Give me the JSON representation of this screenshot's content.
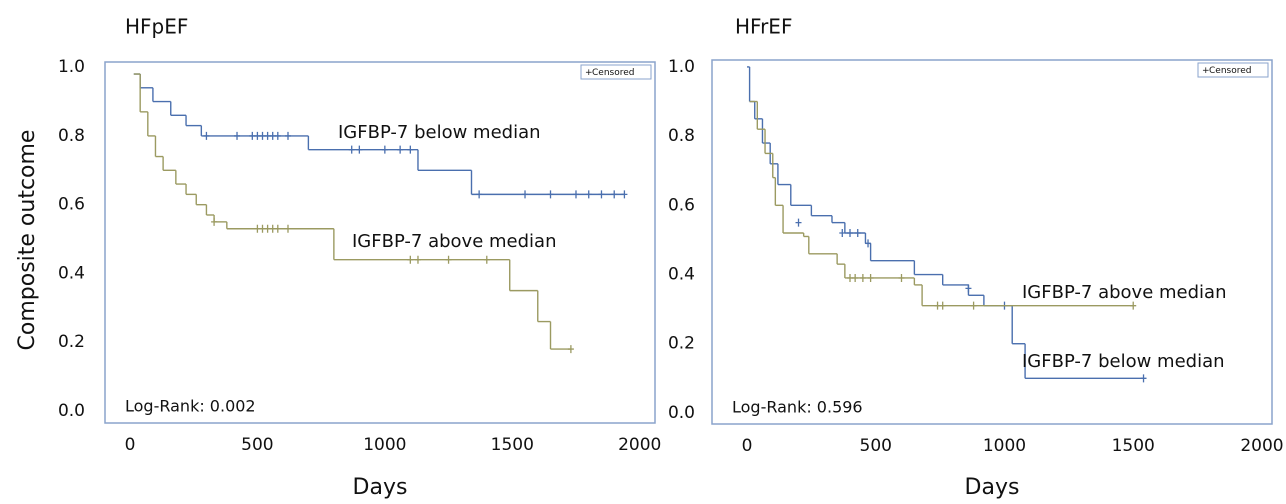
{
  "chart_data": [
    {
      "type": "step",
      "title": "HFpEF",
      "xlabel": "Days",
      "ylabel": "Composite outcome",
      "annotation": "Log-Rank: 0.002",
      "legend_label": "Censored",
      "xlim": [
        -98,
        2060
      ],
      "ylim": [
        -0.035,
        1.015
      ],
      "xticks": [
        0,
        500,
        1000,
        1500,
        2000
      ],
      "yticks": [
        {
          "value": 0,
          "label": "0.0"
        },
        0.2,
        0.4,
        0.6,
        0.8,
        {
          "value": 1,
          "label": "1.0"
        }
      ],
      "series": [
        {
          "name": "IGFBP-7 below median",
          "color": "#4a6fae",
          "x": [
            15,
            40,
            90,
            160,
            220,
            280,
            700,
            1130,
            1340,
            1940
          ],
          "values": [
            0.98,
            0.94,
            0.9,
            0.86,
            0.83,
            0.8,
            0.76,
            0.7,
            0.63,
            0.63
          ],
          "censored_x": [
            300,
            420,
            480,
            500,
            520,
            540,
            560,
            580,
            620,
            870,
            900,
            1000,
            1060,
            1100,
            1370,
            1550,
            1650,
            1750,
            1800,
            1850,
            1900,
            1940
          ],
          "censored_values": [
            0.8,
            0.8,
            0.8,
            0.8,
            0.8,
            0.8,
            0.8,
            0.8,
            0.8,
            0.76,
            0.76,
            0.76,
            0.76,
            0.76,
            0.63,
            0.63,
            0.63,
            0.63,
            0.63,
            0.63,
            0.63,
            0.63
          ]
        },
        {
          "name": "IGFBP-7 above median",
          "color": "#9b9a61",
          "x": [
            15,
            40,
            70,
            100,
            130,
            180,
            220,
            260,
            300,
            330,
            380,
            800,
            1490,
            1600,
            1650,
            1730
          ],
          "values": [
            0.98,
            0.87,
            0.8,
            0.74,
            0.7,
            0.66,
            0.63,
            0.6,
            0.57,
            0.55,
            0.53,
            0.44,
            0.35,
            0.26,
            0.18,
            0.18
          ],
          "censored_x": [
            330,
            500,
            520,
            540,
            560,
            580,
            620,
            1100,
            1130,
            1250,
            1400,
            1730
          ],
          "censored_values": [
            0.55,
            0.53,
            0.53,
            0.53,
            0.53,
            0.53,
            0.53,
            0.44,
            0.44,
            0.44,
            0.44,
            0.18
          ]
        }
      ]
    },
    {
      "type": "step",
      "title": "HFrEF",
      "xlabel": "Days",
      "annotation": "Log-Rank: 0.596",
      "legend_label": "Censored",
      "xlim": [
        -136,
        2039
      ],
      "ylim": [
        -0.032,
        1.02
      ],
      "xticks": [
        0,
        500,
        1000,
        1500,
        2000
      ],
      "yticks": [
        {
          "value": 0,
          "label": "0.0"
        },
        0.2,
        0.4,
        0.6,
        0.8,
        {
          "value": 1,
          "label": "1.0"
        }
      ],
      "series": [
        {
          "name": "IGFBP-7 below median",
          "color": "#4a6fae",
          "x": [
            0,
            10,
            30,
            60,
            90,
            120,
            170,
            250,
            330,
            380,
            460,
            480,
            650,
            760,
            860,
            920,
            1030,
            1080,
            1540
          ],
          "values": [
            1.0,
            0.9,
            0.85,
            0.78,
            0.72,
            0.66,
            0.6,
            0.57,
            0.55,
            0.52,
            0.49,
            0.44,
            0.4,
            0.37,
            0.34,
            0.31,
            0.2,
            0.1,
            0.1
          ],
          "censored_x": [
            200,
            370,
            400,
            430,
            470,
            860,
            1000,
            1540
          ],
          "censored_values": [
            0.55,
            0.52,
            0.52,
            0.52,
            0.49,
            0.36,
            0.31,
            0.1
          ]
        },
        {
          "name": "IGFBP-7 above median",
          "color": "#9b9a61",
          "x": [
            10,
            40,
            70,
            100,
            110,
            140,
            220,
            240,
            350,
            380,
            650,
            680,
            1500
          ],
          "values": [
            0.9,
            0.82,
            0.75,
            0.68,
            0.6,
            0.52,
            0.51,
            0.46,
            0.43,
            0.39,
            0.37,
            0.31,
            0.31
          ],
          "censored_x": [
            400,
            420,
            450,
            480,
            600,
            740,
            760,
            880,
            1500
          ],
          "censored_values": [
            0.39,
            0.39,
            0.39,
            0.39,
            0.39,
            0.31,
            0.31,
            0.31,
            0.31
          ]
        }
      ]
    }
  ]
}
